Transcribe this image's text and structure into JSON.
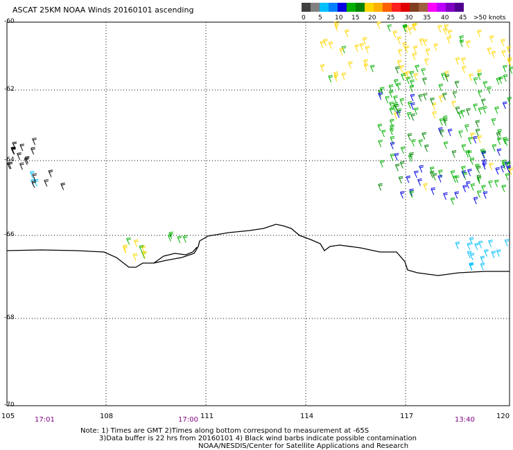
{
  "title": "ASCAT 25KM NOAA Winds 20160101 ascending",
  "legend": {
    "colors": [
      "#404040",
      "#808080",
      "#00bfff",
      "#0080ff",
      "#0000e0",
      "#00b000",
      "#008000",
      "#ffd700",
      "#ffb000",
      "#ff6000",
      "#ff2020",
      "#e00000",
      "#804020",
      "#a06040",
      "#ff00ff",
      "#c000ff",
      "#8000c0",
      "#500090"
    ],
    "labels": [
      "0",
      "5",
      "10",
      "15",
      "20",
      "25",
      "30",
      "35",
      "40",
      "45",
      ">50 knots"
    ]
  },
  "axes": {
    "lat_labels": [
      "-60",
      "-62",
      "-64",
      "-66",
      "-68",
      "-70"
    ],
    "lon_labels": [
      "105",
      "108",
      "111",
      "114",
      "117",
      "120"
    ]
  },
  "times": [
    "17:01",
    "17:00",
    "13:40"
  ],
  "notes": {
    "line1": "Note: 1) Times are GMT 2)Times along bottom correspond to measurement at -65S",
    "line2": "3)Data buffer is 22 hrs from 20160101 4) Black wind barbs indicate possible contamination",
    "line3": "NOAA/NESDIS/Center for Satellite Applications and Research"
  }
}
